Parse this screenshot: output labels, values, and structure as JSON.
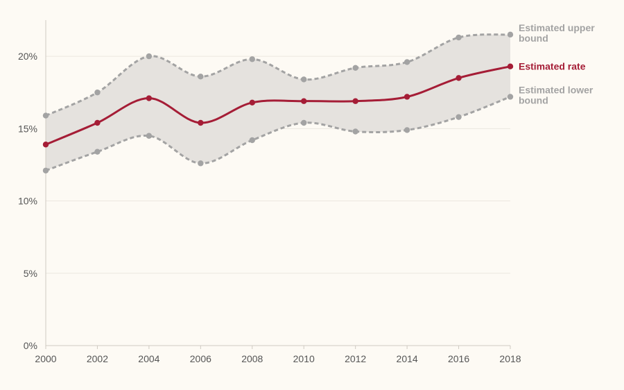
{
  "chart_data": {
    "type": "line",
    "title": "",
    "xlabel": "",
    "ylabel": "",
    "x": [
      2000,
      2002,
      2004,
      2006,
      2008,
      2010,
      2012,
      2014,
      2016,
      2018
    ],
    "xlim": [
      2000,
      2018
    ],
    "ylim": [
      0,
      22.5
    ],
    "x_ticks": [
      "2000",
      "2002",
      "2004",
      "2006",
      "2008",
      "2010",
      "2012",
      "2014",
      "2016",
      "2018"
    ],
    "y_ticks": [
      {
        "value": 0,
        "label": "0%"
      },
      {
        "value": 5,
        "label": "5%"
      },
      {
        "value": 10,
        "label": "10%"
      },
      {
        "value": 15,
        "label": "15%"
      },
      {
        "value": 20,
        "label": "20%"
      }
    ],
    "grid": true,
    "legend": "labels at right end of lines",
    "series": [
      {
        "key": "upper",
        "label_lines": [
          "Estimated upper",
          "bound"
        ],
        "color": "#a3a3a3",
        "dashed": true,
        "values": [
          15.9,
          17.5,
          20.0,
          18.6,
          19.8,
          18.4,
          19.2,
          19.6,
          21.3,
          21.5
        ]
      },
      {
        "key": "rate",
        "label_lines": [
          "Estimated rate"
        ],
        "color": "#a51d36",
        "dashed": false,
        "values": [
          13.9,
          15.4,
          17.1,
          15.4,
          16.8,
          16.9,
          16.9,
          17.2,
          18.5,
          19.3
        ]
      },
      {
        "key": "lower",
        "label_lines": [
          "Estimated lower",
          "bound"
        ],
        "color": "#a3a3a3",
        "dashed": true,
        "values": [
          12.1,
          13.4,
          14.5,
          12.6,
          14.2,
          15.4,
          14.8,
          14.9,
          15.8,
          17.2
        ]
      }
    ],
    "band": {
      "between": [
        "lower",
        "upper"
      ],
      "color": "#e5e2de"
    }
  }
}
